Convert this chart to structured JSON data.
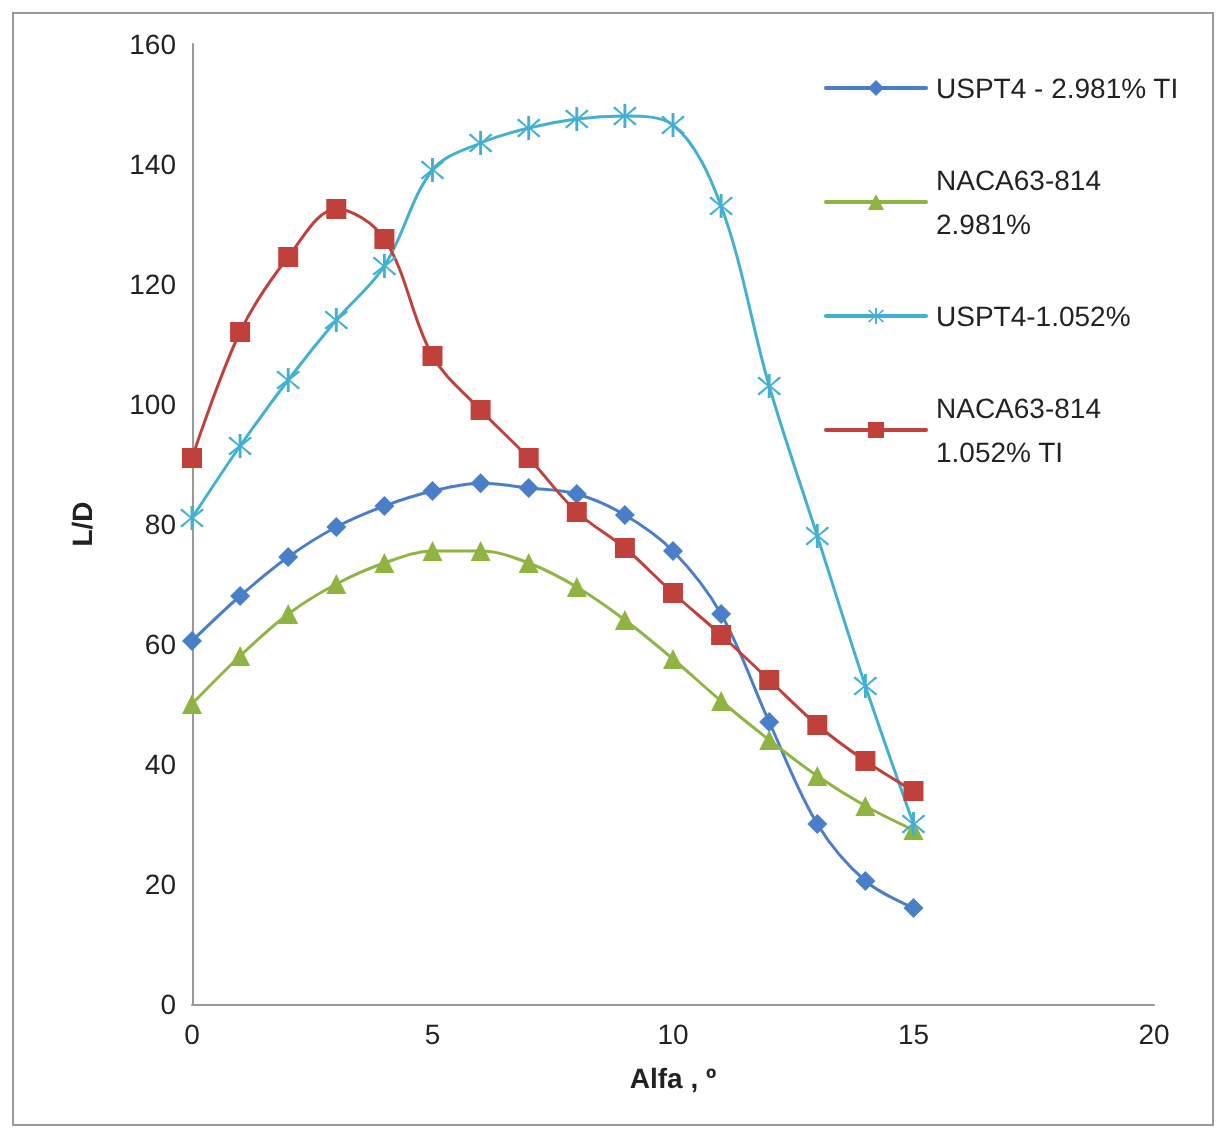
{
  "chart_data": {
    "type": "line",
    "xlabel": "Alfa , º",
    "ylabel": "L/D",
    "x": [
      0,
      1,
      2,
      3,
      4,
      5,
      6,
      7,
      8,
      9,
      10,
      11,
      12,
      13,
      14,
      15
    ],
    "xlim": [
      0,
      20
    ],
    "xticks": [
      0,
      5,
      10,
      15,
      20
    ],
    "ylim": [
      0,
      160
    ],
    "yticks": [
      0,
      20,
      40,
      60,
      80,
      100,
      120,
      140,
      160
    ],
    "grid": false,
    "legend": "top right",
    "line_style": "solid",
    "series": [
      {
        "name": "USPT4 - 2.981% TI",
        "color": "#4a7ec8",
        "marker": "diamond",
        "values": [
          60.5,
          68,
          74.5,
          79.5,
          83,
          85.5,
          86.8,
          86,
          85,
          81.5,
          75.5,
          65,
          47,
          30,
          20.5,
          16
        ]
      },
      {
        "name": "NACA63-814 2.981%",
        "color": "#8fb442",
        "marker": "triangle",
        "values": [
          50,
          58,
          65,
          70,
          73.5,
          75.5,
          75.5,
          73.5,
          69.5,
          64,
          57.5,
          50.5,
          44,
          38,
          33,
          29
        ]
      },
      {
        "name": "USPT4-1.052%",
        "color": "#42b0d0",
        "marker": "cross",
        "values": [
          81,
          93,
          104,
          114,
          123,
          139,
          143.5,
          146,
          147.5,
          148,
          146.5,
          133,
          103,
          78,
          53,
          30
        ]
      },
      {
        "name": "NACA63-814 1.052% TI",
        "color": "#c0403c",
        "marker": "square",
        "values": [
          91,
          112,
          124.5,
          132.5,
          127.5,
          108,
          99,
          91,
          82,
          76,
          68.5,
          61.5,
          54,
          46.5,
          40.5,
          35.5
        ]
      }
    ]
  }
}
